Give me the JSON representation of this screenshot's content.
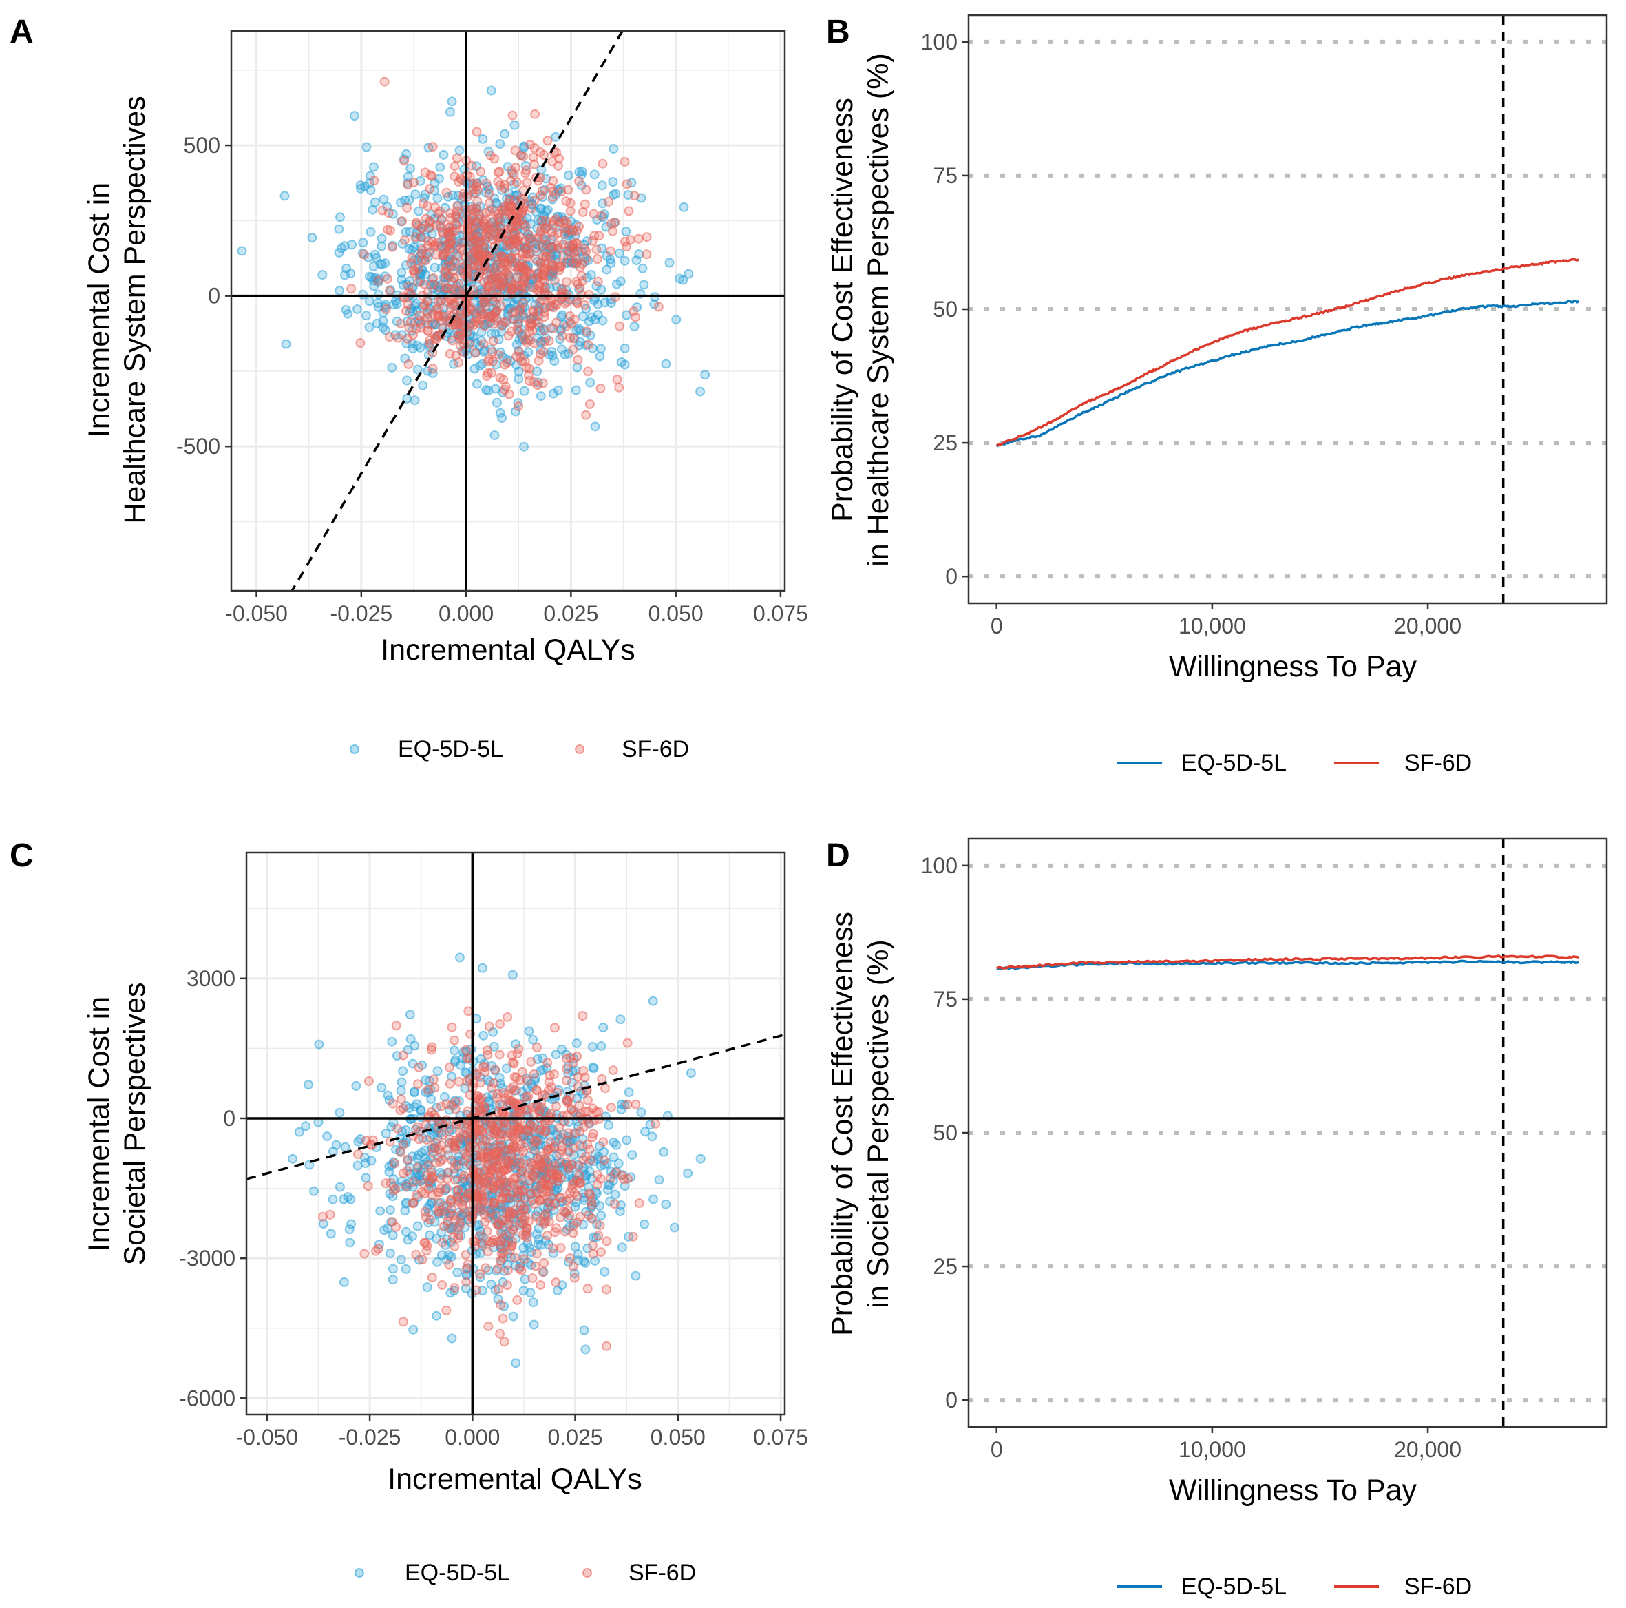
{
  "colors": {
    "eq5d": "#0a78b8",
    "sf6d": "#dc3a2c",
    "eq5d_point": "#2ba3d8",
    "sf6d_point": "#e8635a",
    "grid": "#ebebeb",
    "dotted_grid": "#bdbdbd"
  },
  "legend": {
    "eq5d": "EQ-5D-5L",
    "sf6d": "SF-6D"
  },
  "chart_data": [
    {
      "panel": "A",
      "type": "scatter",
      "title": "",
      "xlabel": "Incremental QALYs",
      "ylabel_line1": "Incremental Cost in",
      "ylabel_line2": "Healthcare System Perspectives",
      "xlim": [
        -0.056,
        0.076
      ],
      "ylim": [
        -980,
        880
      ],
      "x_ticks": [
        -0.05,
        -0.025,
        0,
        0.025,
        0.05,
        0.075
      ],
      "x_tick_labels": [
        "-0.050",
        "-0.025",
        "0.000",
        "0.025",
        "0.050",
        "0.075"
      ],
      "y_ticks": [
        -500,
        0,
        500
      ],
      "y_tick_labels": [
        "-500",
        "0",
        "500"
      ],
      "threshold_line": {
        "slope": 23600,
        "intercept": 0,
        "style": "dashed"
      },
      "series": [
        {
          "name": "EQ-5D-5L",
          "n_points": 800,
          "mean_x": 0.006,
          "sd_x": 0.017,
          "mean_y": 80,
          "sd_y": 190
        },
        {
          "name": "SF-6D",
          "n_points": 800,
          "mean_x": 0.008,
          "sd_x": 0.013,
          "mean_y": 95,
          "sd_y": 175
        }
      ],
      "legend_placement": "bottom"
    },
    {
      "panel": "B",
      "type": "line",
      "title": "",
      "xlabel": "Willingness To Pay",
      "ylabel_line1": "Probability of Cost Effectiveness",
      "ylabel_line2": "in Healthcare System Perspectives (%)",
      "xlim": [
        -1300,
        28300
      ],
      "ylim": [
        -5,
        105
      ],
      "x_ticks": [
        0,
        10000,
        20000
      ],
      "x_tick_labels": [
        "0",
        "10,000",
        "20,000"
      ],
      "y_ticks": [
        0,
        25,
        50,
        75,
        100
      ],
      "y_tick_labels": [
        "0",
        "25",
        "50",
        "75",
        "100"
      ],
      "threshold_x": 23500,
      "series": [
        {
          "name": "EQ-5D-5L",
          "x": [
            0,
            1000,
            2000,
            3000,
            4000,
            5000,
            6000,
            7000,
            8000,
            9000,
            10000,
            11000,
            12000,
            13000,
            14000,
            15000,
            16000,
            17000,
            18000,
            19000,
            20000,
            21000,
            22000,
            23000,
            24000,
            25000,
            26000,
            27000
          ],
          "values": [
            24.3,
            25.6,
            26.3,
            28.5,
            30.6,
            32.4,
            34.4,
            36.2,
            37.8,
            39.2,
            40.3,
            41.5,
            42.5,
            43.4,
            44.1,
            45.0,
            46.0,
            46.9,
            47.5,
            48.1,
            48.8,
            49.6,
            50.3,
            50.6,
            50.5,
            51.0,
            51.2,
            51.5
          ]
        },
        {
          "name": "SF-6D",
          "x": [
            0,
            1000,
            2000,
            3000,
            4000,
            5000,
            6000,
            7000,
            8000,
            9000,
            10000,
            11000,
            12000,
            13000,
            14000,
            15000,
            16000,
            17000,
            18000,
            19000,
            20000,
            21000,
            22000,
            23000,
            24000,
            25000,
            26000,
            27000
          ],
          "values": [
            24.5,
            26.0,
            27.8,
            30.0,
            32.3,
            34.0,
            35.8,
            38.0,
            40.0,
            42.0,
            43.8,
            45.3,
            46.5,
            47.4,
            48.4,
            49.3,
            50.3,
            51.5,
            52.7,
            53.9,
            54.9,
            55.8,
            56.6,
            57.3,
            57.9,
            58.4,
            58.9,
            59.3
          ]
        }
      ],
      "legend_placement": "bottom"
    },
    {
      "panel": "C",
      "type": "scatter",
      "title": "",
      "xlabel": "Incremental QALYs",
      "ylabel_line1": "Incremental Cost in",
      "ylabel_line2": "Societal Perspectives",
      "xlim": [
        -0.055,
        0.076
      ],
      "ylim": [
        -6350,
        5700
      ],
      "x_ticks": [
        -0.05,
        -0.025,
        0,
        0.025,
        0.05,
        0.075
      ],
      "x_tick_labels": [
        "-0.050",
        "-0.025",
        "0.000",
        "0.025",
        "0.050",
        "0.075"
      ],
      "y_ticks": [
        -6000,
        -3000,
        0,
        3000
      ],
      "y_tick_labels": [
        "-6000",
        "-3000",
        "0",
        "3000"
      ],
      "threshold_line": {
        "slope": 23600,
        "intercept": 0,
        "style": "dashed"
      },
      "series": [
        {
          "name": "EQ-5D-5L",
          "n_points": 800,
          "mean_x": 0.006,
          "sd_x": 0.017,
          "mean_y": -1050,
          "sd_y": 1300
        },
        {
          "name": "SF-6D",
          "n_points": 800,
          "mean_x": 0.008,
          "sd_x": 0.013,
          "mean_y": -950,
          "sd_y": 1250
        }
      ],
      "legend_placement": "bottom"
    },
    {
      "panel": "D",
      "type": "line",
      "title": "",
      "xlabel": "Willingness To Pay",
      "ylabel_line1": "Probability of Cost Effectiveness",
      "ylabel_line2": "in Societal Perspectives (%)",
      "xlim": [
        -1300,
        28300
      ],
      "ylim": [
        -5,
        105
      ],
      "x_ticks": [
        0,
        10000,
        20000
      ],
      "x_tick_labels": [
        "0",
        "10,000",
        "20,000"
      ],
      "y_ticks": [
        0,
        25,
        50,
        75,
        100
      ],
      "y_tick_labels": [
        "0",
        "25",
        "50",
        "75",
        "100"
      ],
      "threshold_x": 23500,
      "series": [
        {
          "name": "EQ-5D-5L",
          "x": [
            0,
            2000,
            4000,
            6000,
            8000,
            10000,
            12000,
            14000,
            16000,
            18000,
            20000,
            22000,
            24000,
            26000,
            27000
          ],
          "values": [
            80.7,
            81.1,
            81.5,
            81.7,
            81.6,
            81.7,
            81.8,
            81.8,
            81.7,
            81.8,
            81.9,
            82.0,
            81.9,
            81.9,
            81.9
          ]
        },
        {
          "name": "SF-6D",
          "x": [
            0,
            2000,
            4000,
            6000,
            8000,
            10000,
            12000,
            14000,
            16000,
            18000,
            20000,
            22000,
            24000,
            26000,
            27000
          ],
          "values": [
            80.8,
            81.3,
            81.8,
            82.0,
            82.0,
            82.2,
            82.4,
            82.5,
            82.6,
            82.6,
            82.7,
            82.9,
            83.0,
            82.9,
            82.8
          ]
        }
      ],
      "legend_placement": "bottom"
    }
  ]
}
